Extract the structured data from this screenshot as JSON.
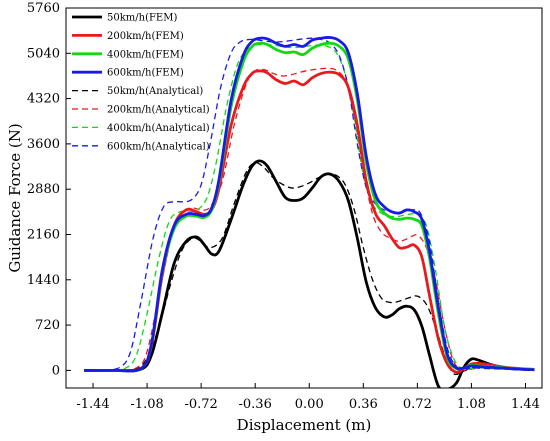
{
  "chart_data": {
    "type": "line",
    "title": "",
    "xlabel": "Displacement (m)",
    "ylabel": "Guidance Force (N)",
    "xlim": [
      -1.62,
      1.55
    ],
    "ylim": [
      -280,
      5760
    ],
    "xticks": [
      -1.44,
      -1.08,
      -0.72,
      -0.36,
      0.0,
      0.36,
      0.72,
      1.08,
      1.44
    ],
    "xtick_labels": [
      "-1.44",
      "-1.08",
      "-0.72",
      "-0.36",
      "0.00",
      "0.36",
      "0.72",
      "1.08",
      "1.44"
    ],
    "yticks": [
      0,
      720,
      1440,
      2160,
      2880,
      3600,
      4320,
      5040,
      5760
    ],
    "ytick_labels": [
      "0",
      "720",
      "1440",
      "2160",
      "2880",
      "3600",
      "4320",
      "5040",
      "5760"
    ],
    "grid": false,
    "legend_position": "top-left",
    "series": [
      {
        "name": "50km/h(FEM)",
        "color": "#000000",
        "dash": "solid",
        "x": [
          -1.5,
          -1.3,
          -1.12,
          -1.05,
          -0.98,
          -0.9,
          -0.82,
          -0.75,
          -0.7,
          -0.65,
          -0.6,
          -0.52,
          -0.44,
          -0.38,
          -0.33,
          -0.28,
          -0.22,
          -0.16,
          -0.1,
          -0.04,
          0.02,
          0.08,
          0.14,
          0.2,
          0.26,
          0.32,
          0.38,
          0.44,
          0.5,
          0.55,
          0.6,
          0.65,
          0.7,
          0.75,
          0.8,
          0.86,
          0.92,
          0.98,
          1.03,
          1.08,
          1.13,
          1.2,
          1.3,
          1.4,
          1.5
        ],
        "y": [
          0,
          0,
          20,
          250,
          900,
          1700,
          2050,
          2120,
          2000,
          1850,
          1900,
          2400,
          2950,
          3250,
          3330,
          3250,
          3000,
          2750,
          2700,
          2740,
          2900,
          3080,
          3120,
          3000,
          2700,
          2100,
          1400,
          1000,
          850,
          880,
          980,
          1020,
          960,
          700,
          250,
          -250,
          -300,
          -200,
          50,
          180,
          160,
          100,
          40,
          20,
          10
        ]
      },
      {
        "name": "200km/h(FEM)",
        "color": "#e8191f",
        "dash": "solid",
        "x": [
          -1.5,
          -1.3,
          -1.12,
          -1.05,
          -0.98,
          -0.9,
          -0.82,
          -0.75,
          -0.7,
          -0.65,
          -0.6,
          -0.52,
          -0.44,
          -0.38,
          -0.33,
          -0.28,
          -0.22,
          -0.16,
          -0.1,
          -0.04,
          0.02,
          0.08,
          0.14,
          0.2,
          0.26,
          0.32,
          0.38,
          0.44,
          0.5,
          0.55,
          0.6,
          0.65,
          0.7,
          0.75,
          0.8,
          0.86,
          0.92,
          0.98,
          1.03,
          1.08,
          1.13,
          1.2,
          1.3,
          1.4,
          1.5
        ],
        "y": [
          0,
          0,
          30,
          400,
          1500,
          2300,
          2550,
          2520,
          2480,
          2550,
          2900,
          3900,
          4500,
          4720,
          4760,
          4730,
          4620,
          4560,
          4600,
          4540,
          4650,
          4720,
          4740,
          4700,
          4500,
          3900,
          3000,
          2500,
          2300,
          2100,
          1950,
          1960,
          1990,
          1800,
          1200,
          500,
          100,
          -30,
          30,
          100,
          110,
          90,
          50,
          30,
          15
        ]
      },
      {
        "name": "400km/h(FEM)",
        "color": "#14d714",
        "dash": "solid",
        "x": [
          -1.5,
          -1.3,
          -1.12,
          -1.05,
          -0.98,
          -0.9,
          -0.82,
          -0.75,
          -0.7,
          -0.65,
          -0.6,
          -0.52,
          -0.44,
          -0.38,
          -0.33,
          -0.28,
          -0.22,
          -0.16,
          -0.1,
          -0.04,
          0.02,
          0.08,
          0.14,
          0.2,
          0.26,
          0.32,
          0.38,
          0.44,
          0.5,
          0.55,
          0.6,
          0.65,
          0.7,
          0.75,
          0.8,
          0.86,
          0.92,
          0.98,
          1.03,
          1.08,
          1.13,
          1.2,
          1.3,
          1.4,
          1.5
        ],
        "y": [
          0,
          0,
          30,
          420,
          1550,
          2250,
          2450,
          2450,
          2430,
          2550,
          3000,
          4200,
          4900,
          5150,
          5200,
          5180,
          5100,
          5050,
          5060,
          5020,
          5120,
          5180,
          5200,
          5150,
          4950,
          4300,
          3300,
          2700,
          2500,
          2420,
          2400,
          2420,
          2400,
          2300,
          1800,
          900,
          200,
          30,
          40,
          80,
          70,
          60,
          40,
          25,
          15
        ]
      },
      {
        "name": "600km/h(FEM)",
        "color": "#1a1ae6",
        "dash": "solid",
        "x": [
          -1.5,
          -1.3,
          -1.12,
          -1.05,
          -0.98,
          -0.9,
          -0.82,
          -0.75,
          -0.7,
          -0.65,
          -0.6,
          -0.52,
          -0.44,
          -0.38,
          -0.33,
          -0.28,
          -0.22,
          -0.16,
          -0.1,
          -0.04,
          0.02,
          0.08,
          0.14,
          0.2,
          0.26,
          0.32,
          0.38,
          0.44,
          0.5,
          0.55,
          0.6,
          0.65,
          0.7,
          0.75,
          0.8,
          0.86,
          0.92,
          0.98,
          1.03,
          1.08,
          1.13,
          1.2,
          1.3,
          1.4,
          1.5
        ],
        "y": [
          0,
          0,
          30,
          430,
          1580,
          2300,
          2480,
          2480,
          2460,
          2580,
          3050,
          4300,
          5000,
          5230,
          5280,
          5270,
          5200,
          5150,
          5180,
          5150,
          5250,
          5280,
          5290,
          5240,
          5050,
          4400,
          3400,
          2800,
          2600,
          2520,
          2500,
          2550,
          2520,
          2400,
          1900,
          1000,
          250,
          40,
          40,
          70,
          60,
          50,
          35,
          20,
          10
        ]
      },
      {
        "name": "50km/h(Analytical)",
        "color": "#000000",
        "dash": "dashed",
        "x": [
          -1.5,
          -1.3,
          -1.15,
          -1.08,
          -1.0,
          -0.92,
          -0.85,
          -0.78,
          -0.72,
          -0.66,
          -0.58,
          -0.5,
          -0.42,
          -0.36,
          -0.3,
          -0.24,
          -0.18,
          -0.12,
          -0.06,
          0.0,
          0.06,
          0.12,
          0.18,
          0.24,
          0.3,
          0.36,
          0.42,
          0.48,
          0.54,
          0.6,
          0.66,
          0.72,
          0.78,
          0.84,
          0.9,
          0.96,
          1.02,
          1.08,
          1.14,
          1.2,
          1.3,
          1.4,
          1.5
        ],
        "y": [
          0,
          0,
          30,
          200,
          700,
          1400,
          1900,
          2100,
          2050,
          1950,
          2100,
          2650,
          3150,
          3300,
          3220,
          3060,
          2960,
          2900,
          2920,
          2980,
          3060,
          3120,
          3100,
          2950,
          2550,
          1950,
          1450,
          1150,
          1080,
          1100,
          1150,
          1180,
          1050,
          700,
          250,
          -50,
          -20,
          40,
          60,
          50,
          30,
          15,
          5
        ]
      },
      {
        "name": "200km/h(Analytical)",
        "color": "#e8191f",
        "dash": "dashed",
        "x": [
          -1.5,
          -1.3,
          -1.15,
          -1.08,
          -1.0,
          -0.92,
          -0.85,
          -0.78,
          -0.72,
          -0.66,
          -0.58,
          -0.5,
          -0.42,
          -0.36,
          -0.3,
          -0.24,
          -0.18,
          -0.12,
          -0.06,
          0.0,
          0.06,
          0.12,
          0.18,
          0.24,
          0.3,
          0.36,
          0.42,
          0.48,
          0.54,
          0.6,
          0.66,
          0.72,
          0.78,
          0.84,
          0.9,
          0.96,
          1.02,
          1.08,
          1.14,
          1.2,
          1.3,
          1.4,
          1.5
        ],
        "y": [
          0,
          0,
          40,
          300,
          1200,
          2100,
          2500,
          2580,
          2550,
          2600,
          3000,
          3900,
          4550,
          4760,
          4780,
          4720,
          4680,
          4700,
          4740,
          4770,
          4790,
          4800,
          4770,
          4600,
          4050,
          3200,
          2500,
          2200,
          2100,
          2050,
          2100,
          2150,
          1950,
          1450,
          700,
          150,
          0,
          20,
          40,
          40,
          30,
          15,
          5
        ]
      },
      {
        "name": "400km/h(Analytical)",
        "color": "#14d714",
        "dash": "dashed",
        "x": [
          -1.5,
          -1.35,
          -1.22,
          -1.15,
          -1.08,
          -1.0,
          -0.93,
          -0.86,
          -0.8,
          -0.74,
          -0.68,
          -0.62,
          -0.55,
          -0.48,
          -0.42,
          -0.36,
          -0.3,
          -0.24,
          -0.18,
          -0.12,
          -0.06,
          0.0,
          0.06,
          0.12,
          0.18,
          0.24,
          0.3,
          0.36,
          0.42,
          0.48,
          0.54,
          0.6,
          0.66,
          0.72,
          0.78,
          0.84,
          0.9,
          0.96,
          1.02,
          1.08,
          1.14,
          1.2,
          1.3,
          1.4,
          1.5
        ],
        "y": [
          0,
          0,
          40,
          250,
          900,
          1800,
          2380,
          2520,
          2520,
          2560,
          2750,
          3300,
          4200,
          4850,
          5080,
          5170,
          5180,
          5170,
          5150,
          5130,
          5140,
          5160,
          5170,
          5150,
          5050,
          4700,
          4000,
          3100,
          2650,
          2500,
          2450,
          2450,
          2480,
          2480,
          2300,
          1600,
          700,
          200,
          20,
          30,
          40,
          30,
          20,
          10,
          5
        ]
      },
      {
        "name": "600km/h(Analytical)",
        "color": "#1a1ae6",
        "dash": "dashed",
        "x": [
          -1.5,
          -1.38,
          -1.26,
          -1.19,
          -1.12,
          -1.04,
          -0.97,
          -0.9,
          -0.84,
          -0.78,
          -0.72,
          -0.66,
          -0.59,
          -0.52,
          -0.46,
          -0.4,
          -0.34,
          -0.28,
          -0.22,
          -0.16,
          -0.1,
          -0.04,
          0.02,
          0.08,
          0.14,
          0.2,
          0.26,
          0.32,
          0.38,
          0.44,
          0.5,
          0.56,
          0.62,
          0.68,
          0.74,
          0.8,
          0.86,
          0.92,
          0.98,
          1.04,
          1.1,
          1.16,
          1.3,
          1.4,
          1.5
        ],
        "y": [
          0,
          0,
          50,
          300,
          1100,
          2100,
          2600,
          2680,
          2680,
          2720,
          2950,
          3600,
          4500,
          5050,
          5220,
          5260,
          5250,
          5230,
          5220,
          5230,
          5250,
          5270,
          5280,
          5260,
          5200,
          5000,
          4500,
          3600,
          2900,
          2650,
          2550,
          2520,
          2520,
          2550,
          2500,
          2050,
          1100,
          350,
          60,
          30,
          40,
          30,
          20,
          10,
          5
        ]
      }
    ]
  }
}
